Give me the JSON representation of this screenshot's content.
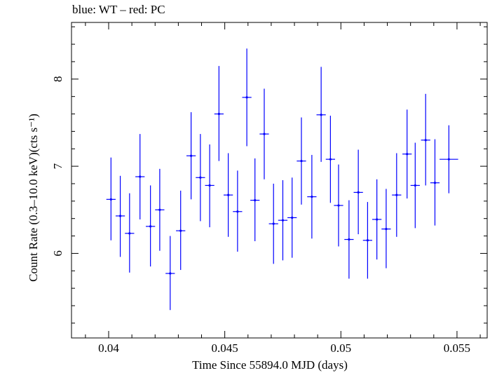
{
  "chart_data": {
    "type": "scatter",
    "title": "blue: WT – red: PC",
    "xlabel": "Time Since 55894.0 MJD (days)",
    "ylabel": "Count Rate (0.3–10.0 keV)(cts s⁻¹)",
    "xlim": [
      0.0384,
      0.0563
    ],
    "ylim": [
      5.03,
      8.65
    ],
    "x_ticks": [
      0.04,
      0.045,
      0.05,
      0.055
    ],
    "x_tick_labels": [
      "0.04",
      "0.045",
      "0.05",
      "0.055"
    ],
    "y_ticks": [
      6,
      7,
      8
    ],
    "y_tick_labels": [
      "6",
      "7",
      "8"
    ],
    "grid": false,
    "series": [
      {
        "name": "WT",
        "color": "#0000ff",
        "x_halfwidth": 0.0002,
        "points": [
          {
            "x": 0.0401,
            "y": 6.62,
            "ylo": 6.15,
            "yhi": 7.1
          },
          {
            "x": 0.0405,
            "y": 6.43,
            "ylo": 5.96,
            "yhi": 6.89
          },
          {
            "x": 0.0409,
            "y": 6.23,
            "ylo": 5.78,
            "yhi": 6.69
          },
          {
            "x": 0.04135,
            "y": 6.88,
            "ylo": 6.39,
            "yhi": 7.37
          },
          {
            "x": 0.0418,
            "y": 6.31,
            "ylo": 5.85,
            "yhi": 6.78
          },
          {
            "x": 0.0422,
            "y": 6.5,
            "ylo": 6.03,
            "yhi": 6.97
          },
          {
            "x": 0.04265,
            "y": 5.77,
            "ylo": 5.35,
            "yhi": 6.2
          },
          {
            "x": 0.0431,
            "y": 6.26,
            "ylo": 5.81,
            "yhi": 6.72
          },
          {
            "x": 0.04355,
            "y": 7.12,
            "ylo": 6.62,
            "yhi": 7.62
          },
          {
            "x": 0.04395,
            "y": 6.87,
            "ylo": 6.37,
            "yhi": 7.37
          },
          {
            "x": 0.04435,
            "y": 6.78,
            "ylo": 6.3,
            "yhi": 7.25
          },
          {
            "x": 0.04475,
            "y": 7.6,
            "ylo": 7.06,
            "yhi": 8.15
          },
          {
            "x": 0.04515,
            "y": 6.67,
            "ylo": 6.19,
            "yhi": 7.15
          },
          {
            "x": 0.04555,
            "y": 6.48,
            "ylo": 6.02,
            "yhi": 6.95
          },
          {
            "x": 0.04595,
            "y": 7.79,
            "ylo": 7.23,
            "yhi": 8.35
          },
          {
            "x": 0.0463,
            "y": 6.61,
            "ylo": 6.14,
            "yhi": 7.09
          },
          {
            "x": 0.0467,
            "y": 7.37,
            "ylo": 6.85,
            "yhi": 7.89
          },
          {
            "x": 0.0471,
            "y": 6.34,
            "ylo": 5.88,
            "yhi": 6.8
          },
          {
            "x": 0.0475,
            "y": 6.38,
            "ylo": 5.92,
            "yhi": 6.84
          },
          {
            "x": 0.0479,
            "y": 6.41,
            "ylo": 5.95,
            "yhi": 6.87
          },
          {
            "x": 0.0483,
            "y": 7.06,
            "ylo": 6.56,
            "yhi": 7.56
          },
          {
            "x": 0.04875,
            "y": 6.65,
            "ylo": 6.17,
            "yhi": 7.13
          },
          {
            "x": 0.04915,
            "y": 7.59,
            "ylo": 7.05,
            "yhi": 8.14
          },
          {
            "x": 0.04955,
            "y": 7.08,
            "ylo": 6.58,
            "yhi": 7.58
          },
          {
            "x": 0.0499,
            "y": 6.55,
            "ylo": 6.08,
            "yhi": 7.02
          },
          {
            "x": 0.05035,
            "y": 6.16,
            "ylo": 5.71,
            "yhi": 6.61
          },
          {
            "x": 0.05075,
            "y": 6.7,
            "ylo": 6.22,
            "yhi": 7.19
          },
          {
            "x": 0.05115,
            "y": 6.15,
            "ylo": 5.71,
            "yhi": 6.59
          },
          {
            "x": 0.05155,
            "y": 6.39,
            "ylo": 5.93,
            "yhi": 6.85
          },
          {
            "x": 0.05195,
            "y": 6.28,
            "ylo": 5.83,
            "yhi": 6.74
          },
          {
            "x": 0.0524,
            "y": 6.67,
            "ylo": 6.19,
            "yhi": 7.15
          },
          {
            "x": 0.05285,
            "y": 7.14,
            "ylo": 6.63,
            "yhi": 7.65
          },
          {
            "x": 0.0532,
            "y": 6.78,
            "ylo": 6.29,
            "yhi": 7.27
          },
          {
            "x": 0.05365,
            "y": 7.3,
            "ylo": 6.78,
            "yhi": 7.83
          },
          {
            "x": 0.05405,
            "y": 6.81,
            "ylo": 6.32,
            "yhi": 7.31
          },
          {
            "x": 0.05465,
            "y": 7.08,
            "ylo": 6.69,
            "yhi": 7.47,
            "x_halfwidth": 0.0004
          }
        ]
      }
    ]
  }
}
